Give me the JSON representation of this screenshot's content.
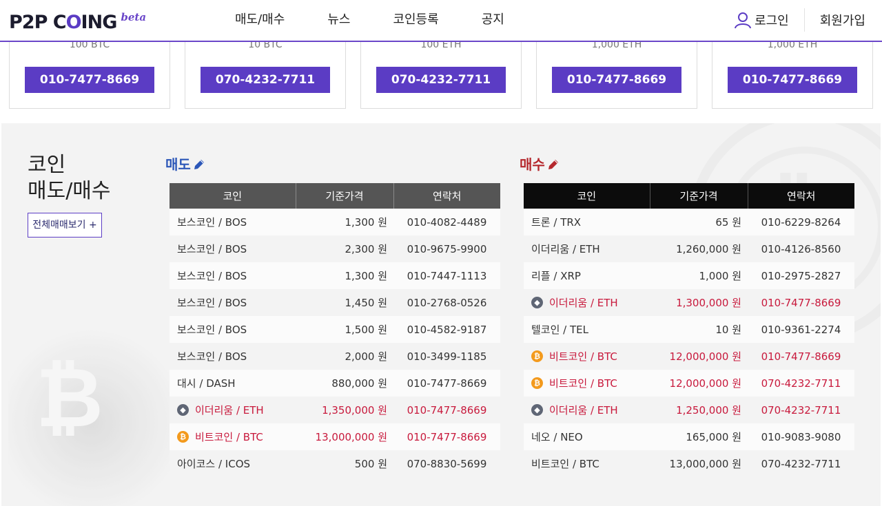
{
  "header": {
    "logo_prefix": "P2P C",
    "logo_o": "O",
    "logo_suffix": "ING",
    "logo_beta": "beta",
    "nav": [
      "매도/매수",
      "뉴스",
      "코인등록",
      "공지"
    ],
    "login": "로그인",
    "signup": "회원가입"
  },
  "cards": [
    {
      "amount": "100 BTC",
      "phone": "010-7477-8669"
    },
    {
      "amount": "10 BTC",
      "phone": "070-4232-7711"
    },
    {
      "amount": "100 ETH",
      "phone": "070-4232-7711"
    },
    {
      "amount": "1,000 ETH",
      "phone": "010-7477-8669"
    },
    {
      "amount": "1,000 ETH",
      "phone": "010-7477-8669"
    }
  ],
  "section": {
    "title_line1": "코인",
    "title_line2": "매도/매수",
    "all_button": "전체매매보기 +"
  },
  "sell": {
    "title": "매도",
    "headers": [
      "코인",
      "기준가격",
      "연락처"
    ],
    "rows": [
      {
        "coin": "보스코인 / BOS",
        "price": "1,300 원",
        "phone": "010-4082-4489",
        "icon": "",
        "highlight": false
      },
      {
        "coin": "보스코인 / BOS",
        "price": "2,300 원",
        "phone": "010-9675-9900",
        "icon": "",
        "highlight": false
      },
      {
        "coin": "보스코인 / BOS",
        "price": "1,300 원",
        "phone": "010-7447-1113",
        "icon": "",
        "highlight": false
      },
      {
        "coin": "보스코인 / BOS",
        "price": "1,450 원",
        "phone": "010-2768-0526",
        "icon": "",
        "highlight": false
      },
      {
        "coin": "보스코인 / BOS",
        "price": "1,500 원",
        "phone": "010-4582-9187",
        "icon": "",
        "highlight": false
      },
      {
        "coin": "보스코인 / BOS",
        "price": "2,000 원",
        "phone": "010-3499-1185",
        "icon": "",
        "highlight": false
      },
      {
        "coin": "대시 / DASH",
        "price": "880,000 원",
        "phone": "010-7477-8669",
        "icon": "",
        "highlight": false
      },
      {
        "coin": "이더리움 / ETH",
        "price": "1,350,000 원",
        "phone": "010-7477-8669",
        "icon": "eth",
        "highlight": true
      },
      {
        "coin": "비트코인 / BTC",
        "price": "13,000,000 원",
        "phone": "010-7477-8669",
        "icon": "btc",
        "highlight": true
      },
      {
        "coin": "아이코스 / ICOS",
        "price": "500 원",
        "phone": "070-8830-5699",
        "icon": "",
        "highlight": false
      }
    ]
  },
  "buy": {
    "title": "매수",
    "headers": [
      "코인",
      "기준가격",
      "연락처"
    ],
    "rows": [
      {
        "coin": "트론 / TRX",
        "price": "65 원",
        "phone": "010-6229-8264",
        "icon": "",
        "highlight": false
      },
      {
        "coin": "이더리움 / ETH",
        "price": "1,260,000 원",
        "phone": "010-4126-8560",
        "icon": "",
        "highlight": false
      },
      {
        "coin": "리플 / XRP",
        "price": "1,000 원",
        "phone": "010-2975-2827",
        "icon": "",
        "highlight": false
      },
      {
        "coin": "이더리움 / ETH",
        "price": "1,300,000 원",
        "phone": "010-7477-8669",
        "icon": "eth",
        "highlight": true
      },
      {
        "coin": "텔코인 / TEL",
        "price": "10 원",
        "phone": "010-9361-2274",
        "icon": "",
        "highlight": false
      },
      {
        "coin": "비트코인 / BTC",
        "price": "12,000,000 원",
        "phone": "010-7477-8669",
        "icon": "btc",
        "highlight": true
      },
      {
        "coin": "비트코인 / BTC",
        "price": "12,000,000 원",
        "phone": "070-4232-7711",
        "icon": "btc",
        "highlight": true
      },
      {
        "coin": "이더리움 / ETH",
        "price": "1,250,000 원",
        "phone": "070-4232-7711",
        "icon": "eth",
        "highlight": true
      },
      {
        "coin": "네오 / NEO",
        "price": "165,000 원",
        "phone": "010-9083-9080",
        "icon": "",
        "highlight": false
      },
      {
        "coin": "비트코인 / BTC",
        "price": "13,000,000 원",
        "phone": "070-4232-7711",
        "icon": "",
        "highlight": false
      }
    ]
  },
  "colors": {
    "brand": "#5b3cc4",
    "sell_title": "#2c57b8",
    "buy_title": "#b5282d",
    "highlight_text": "#c8193c"
  }
}
